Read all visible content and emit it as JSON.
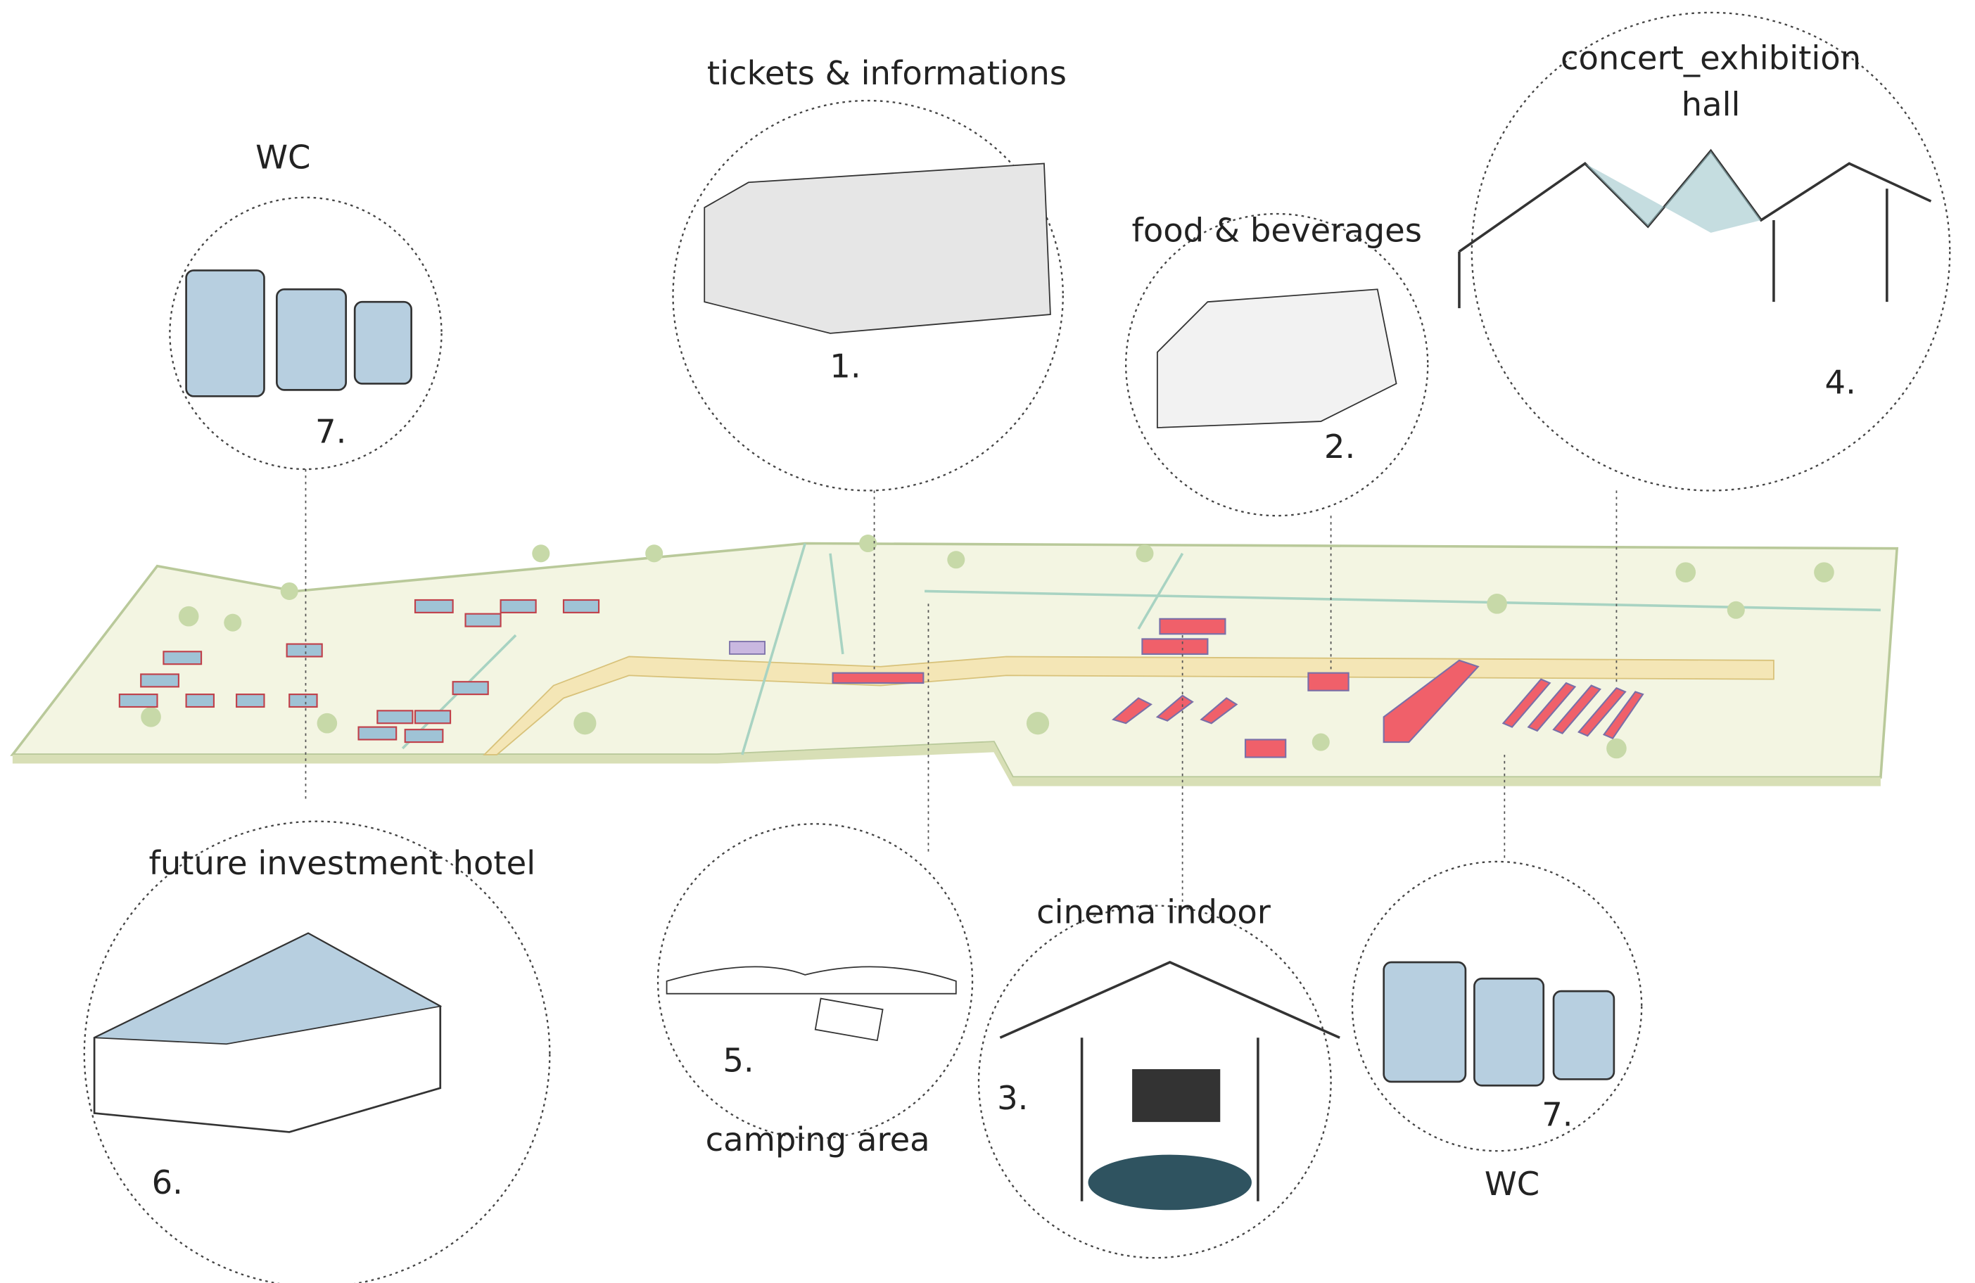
{
  "nodes": [
    {
      "label": [
        "tickets & informations"
      ],
      "number": "1."
    },
    {
      "label": [
        "food & beverages"
      ],
      "number": "2."
    },
    {
      "label": [
        "concert_exhibition",
        "hall"
      ],
      "number": "4."
    },
    {
      "label": [
        "WC"
      ],
      "number": "7."
    },
    {
      "label": [
        "future investment hotel"
      ],
      "number": "6."
    },
    {
      "label": [
        "camping area"
      ],
      "number": "5."
    },
    {
      "label": [
        "cinema indoor"
      ],
      "number": "3."
    },
    {
      "label": [
        "WC"
      ],
      "number": "7."
    }
  ]
}
